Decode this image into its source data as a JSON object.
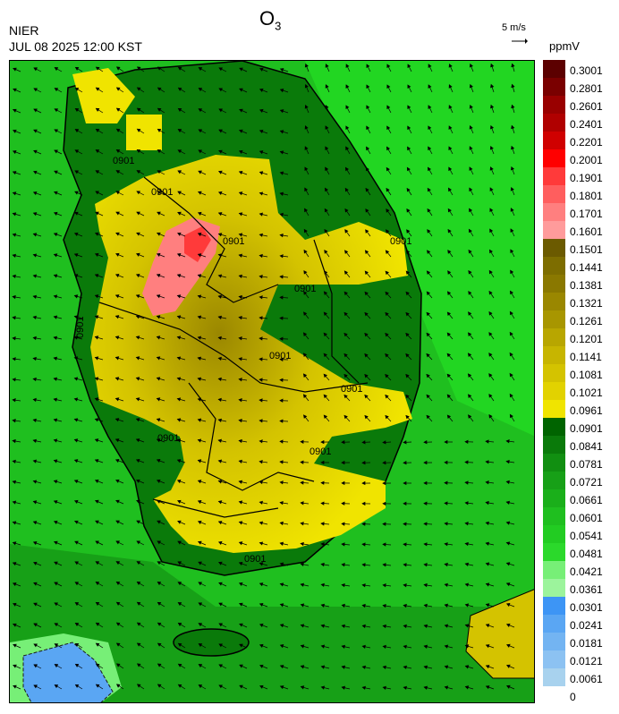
{
  "header": {
    "title_main": "O",
    "title_sub": "3",
    "org": "NIER",
    "datetime": "JUL 08 2025 12:00 KST",
    "wind_reference": "5 m/s",
    "unit": "ppmV"
  },
  "map": {
    "contour_labels": [
      "0901",
      "0901",
      "0901",
      "0901",
      "0901",
      "0901",
      "0901",
      "0901",
      "0901",
      "0901",
      "0901"
    ]
  },
  "legend": {
    "labels": [
      "0.3001",
      "0.2801",
      "0.2601",
      "0.2401",
      "0.2201",
      "0.2001",
      "0.1901",
      "0.1801",
      "0.1701",
      "0.1601",
      "0.1501",
      "0.1441",
      "0.1381",
      "0.1321",
      "0.1261",
      "0.1201",
      "0.1141",
      "0.1081",
      "0.1021",
      "0.0961",
      "0.0901",
      "0.0841",
      "0.0781",
      "0.0721",
      "0.0661",
      "0.0601",
      "0.0541",
      "0.0481",
      "0.0421",
      "0.0361",
      "0.0301",
      "0.0241",
      "0.0181",
      "0.0121",
      "0.0061",
      "0"
    ],
    "colors": [
      "#5c0000",
      "#7a0000",
      "#990000",
      "#b00000",
      "#d00000",
      "#ff0000",
      "#ff3a3a",
      "#ff5e5e",
      "#ff7f7f",
      "#ff9b9b",
      "#6b5a00",
      "#7d6d00",
      "#8a7800",
      "#9a8700",
      "#a89600",
      "#b8a600",
      "#c7b500",
      "#d4c300",
      "#e2d200",
      "#f0e400",
      "#006400",
      "#0a7a0a",
      "#118f11",
      "#17a017",
      "#1aaf1a",
      "#1fbf1f",
      "#22cc22",
      "#2bd92b",
      "#77ef77",
      "#9cf49c",
      "#3d95f5",
      "#5aa6f3",
      "#73b4f2",
      "#8cc2f2",
      "#a8d2ee"
    ]
  }
}
